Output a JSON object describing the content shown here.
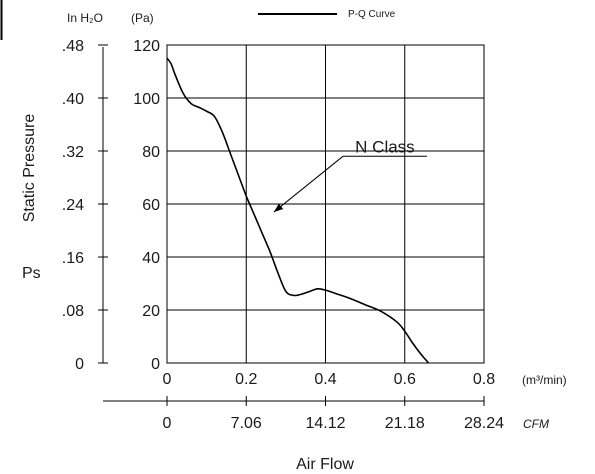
{
  "chart_data": {
    "type": "line",
    "title": "",
    "ylabel": "Static Pressure",
    "ylabel_symbol": "Ps",
    "xlabel": "Air Flow",
    "y_units": {
      "inch": "In H₂O",
      "pa": "(Pa)"
    },
    "x_units": {
      "m3": "(m³/min)",
      "cfm": "CFM"
    },
    "legend": {
      "label": "P-Q Curve",
      "position": "top-center"
    },
    "grid": true,
    "xlim": [
      0,
      0.8
    ],
    "ylim": [
      0,
      120
    ],
    "x_ticks_m3": [
      "0",
      "0.2",
      "0.4",
      "0.6",
      "0.8"
    ],
    "x_ticks_cfm": [
      "0",
      "7.06",
      "14.12",
      "21.18",
      "28.24"
    ],
    "y_ticks_pa": [
      "0",
      "20",
      "40",
      "60",
      "80",
      "100",
      "120"
    ],
    "y_ticks_inh2o": [
      "0",
      ".08",
      ".16",
      ".24",
      ".32",
      ".40",
      ".48"
    ],
    "annotations": [
      {
        "text": "N Class",
        "x": 0.55,
        "y": 78,
        "arrow_to": [
          0.27,
          57
        ]
      }
    ],
    "series": [
      {
        "name": "P-Q Curve",
        "x": [
          0,
          0.01,
          0.02,
          0.04,
          0.06,
          0.08,
          0.1,
          0.12,
          0.14,
          0.16,
          0.18,
          0.2,
          0.22,
          0.24,
          0.26,
          0.28,
          0.3,
          0.32,
          0.34,
          0.36,
          0.38,
          0.4,
          0.43,
          0.46,
          0.5,
          0.54,
          0.58,
          0.6,
          0.62,
          0.64,
          0.66
        ],
        "y": [
          115,
          113,
          109,
          102,
          98,
          96.5,
          95,
          93,
          87,
          79,
          71,
          63,
          56,
          49,
          42,
          34,
          27,
          25.5,
          26,
          27,
          28,
          27.5,
          26,
          24.5,
          22,
          19.5,
          15.5,
          12,
          7.5,
          3.5,
          0
        ]
      }
    ]
  }
}
